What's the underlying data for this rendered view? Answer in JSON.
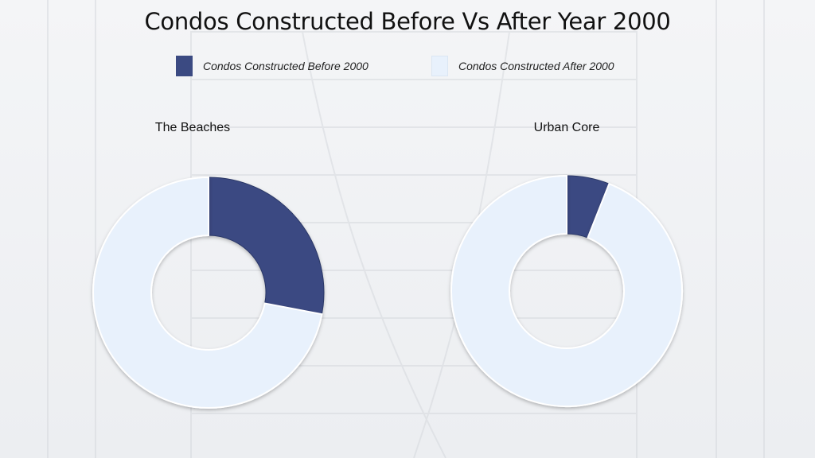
{
  "chart_data": {
    "type": "pie",
    "title": "Condos Constructed Before Vs After Year 2000",
    "legend": {
      "placement": "top",
      "entries": [
        {
          "label": "Condos Constructed Before 2000",
          "color": "#3b4a82"
        },
        {
          "label": "Condos Constructed After 2000",
          "color": "#e8f1fc"
        }
      ]
    },
    "charts": [
      {
        "name": "The Beaches",
        "values": [
          28,
          72
        ]
      },
      {
        "name": "Urban Core",
        "values": [
          6,
          94
        ]
      }
    ]
  }
}
